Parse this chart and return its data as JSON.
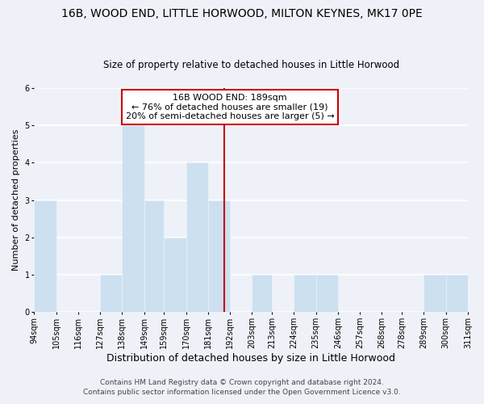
{
  "title": "16B, WOOD END, LITTLE HORWOOD, MILTON KEYNES, MK17 0PE",
  "subtitle": "Size of property relative to detached houses in Little Horwood",
  "xlabel": "Distribution of detached houses by size in Little Horwood",
  "ylabel": "Number of detached properties",
  "bin_edges": [
    94,
    105,
    116,
    127,
    138,
    149,
    159,
    170,
    181,
    192,
    203,
    213,
    224,
    235,
    246,
    257,
    268,
    278,
    289,
    300,
    311
  ],
  "bar_heights": [
    3,
    0,
    0,
    1,
    5,
    3,
    2,
    4,
    3,
    0,
    1,
    0,
    1,
    1,
    0,
    0,
    0,
    0,
    1,
    1
  ],
  "bar_color": "#cce0f0",
  "bar_edgecolor": "#ffffff",
  "vline_x": 189,
  "vline_color": "#cc0000",
  "annotation_title": "16B WOOD END: 189sqm",
  "annotation_line1": "← 76% of detached houses are smaller (19)",
  "annotation_line2": "20% of semi-detached houses are larger (5) →",
  "annotation_box_color": "#ffffff",
  "annotation_box_edgecolor": "#cc0000",
  "ylim": [
    0,
    6
  ],
  "yticks": [
    0,
    1,
    2,
    3,
    4,
    5,
    6
  ],
  "tick_labels": [
    "94sqm",
    "105sqm",
    "116sqm",
    "127sqm",
    "138sqm",
    "149sqm",
    "159sqm",
    "170sqm",
    "181sqm",
    "192sqm",
    "203sqm",
    "213sqm",
    "224sqm",
    "235sqm",
    "246sqm",
    "257sqm",
    "268sqm",
    "278sqm",
    "289sqm",
    "300sqm",
    "311sqm"
  ],
  "footer1": "Contains HM Land Registry data © Crown copyright and database right 2024.",
  "footer2": "Contains public sector information licensed under the Open Government Licence v3.0.",
  "bg_color": "#eef2f8",
  "grid_color": "#ffffff",
  "title_fontsize": 10,
  "subtitle_fontsize": 8.5,
  "xlabel_fontsize": 9,
  "ylabel_fontsize": 8,
  "tick_fontsize": 7,
  "footer_fontsize": 6.5,
  "ann_fontsize": 8
}
